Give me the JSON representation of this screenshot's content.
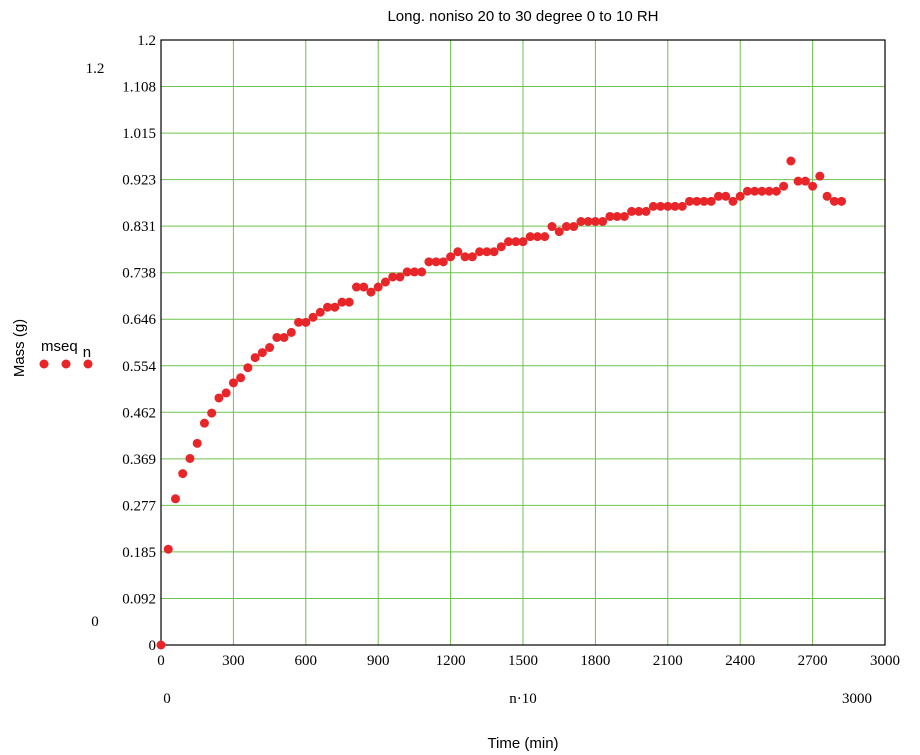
{
  "chart_data": {
    "type": "scatter",
    "title": "Long. noniso 20 to 30 degree 0 to 10 RH",
    "xlabel": "Time (min)",
    "ylabel": "Mass (g)",
    "x_expression": "n·10",
    "xlim": [
      0,
      3000
    ],
    "ylim": [
      0,
      1.2
    ],
    "x_ticks": [
      "0",
      "300",
      "600",
      "900",
      "1200",
      "1500",
      "1800",
      "2100",
      "2400",
      "2700",
      "3000"
    ],
    "y_ticks": [
      "0",
      "0.092",
      "0.185",
      "0.277",
      "0.369",
      "0.462",
      "0.554",
      "0.646",
      "0.738",
      "0.831",
      "0.923",
      "1.015",
      "1.108",
      "1.2"
    ],
    "x_range_labels": {
      "min": "0",
      "max": "3000"
    },
    "y_range_labels": {
      "min": "0",
      "max": "1.2"
    },
    "grid": true,
    "marker_color": "#e8262a",
    "grid_color": "#6dc24b",
    "series": [
      {
        "name": "mseq",
        "name_subscript": "n",
        "x": [
          0,
          30,
          60,
          90,
          120,
          150,
          180,
          210,
          240,
          270,
          300,
          330,
          360,
          390,
          420,
          450,
          480,
          510,
          540,
          570,
          600,
          630,
          660,
          690,
          720,
          750,
          780,
          810,
          840,
          870,
          900,
          930,
          960,
          990,
          1020,
          1050,
          1080,
          1110,
          1140,
          1170,
          1200,
          1230,
          1260,
          1290,
          1320,
          1350,
          1380,
          1410,
          1440,
          1470,
          1500,
          1530,
          1560,
          1590,
          1620,
          1650,
          1680,
          1710,
          1740,
          1770,
          1800,
          1830,
          1860,
          1890,
          1920,
          1950,
          1980,
          2010,
          2040,
          2070,
          2100,
          2130,
          2160,
          2190,
          2220,
          2250,
          2280,
          2310,
          2340,
          2370,
          2400,
          2430,
          2460,
          2490,
          2520,
          2550,
          2580,
          2610,
          2640,
          2670,
          2700,
          2730,
          2760,
          2790,
          2820
        ],
        "y": [
          0.0,
          0.19,
          0.29,
          0.34,
          0.37,
          0.4,
          0.44,
          0.46,
          0.49,
          0.5,
          0.52,
          0.53,
          0.55,
          0.57,
          0.58,
          0.59,
          0.61,
          0.61,
          0.62,
          0.64,
          0.64,
          0.65,
          0.66,
          0.67,
          0.67,
          0.68,
          0.68,
          0.71,
          0.71,
          0.7,
          0.71,
          0.72,
          0.73,
          0.73,
          0.74,
          0.74,
          0.74,
          0.76,
          0.76,
          0.76,
          0.77,
          0.78,
          0.77,
          0.77,
          0.78,
          0.78,
          0.78,
          0.79,
          0.8,
          0.8,
          0.8,
          0.81,
          0.81,
          0.81,
          0.83,
          0.82,
          0.83,
          0.83,
          0.84,
          0.84,
          0.84,
          0.84,
          0.85,
          0.85,
          0.85,
          0.86,
          0.86,
          0.86,
          0.87,
          0.87,
          0.87,
          0.87,
          0.87,
          0.88,
          0.88,
          0.88,
          0.88,
          0.89,
          0.89,
          0.88,
          0.89,
          0.9,
          0.9,
          0.9,
          0.9,
          0.9,
          0.91,
          0.96,
          0.92,
          0.92,
          0.91,
          0.93,
          0.89,
          0.88,
          0.88
        ]
      }
    ]
  }
}
